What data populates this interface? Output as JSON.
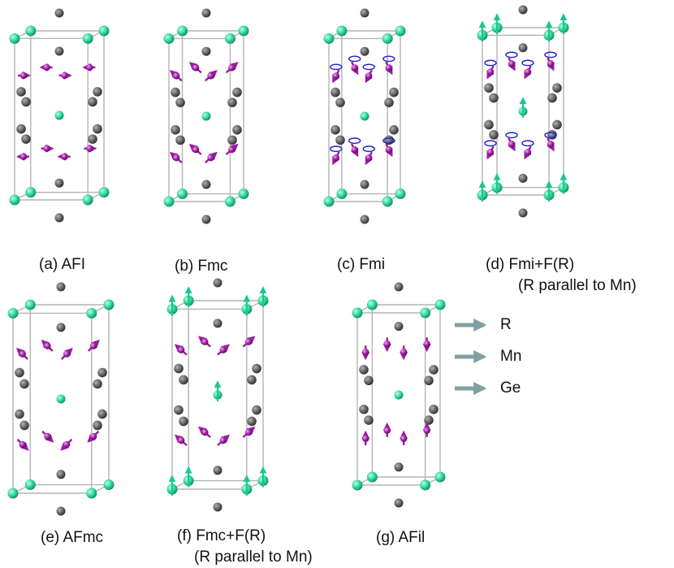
{
  "panels": [
    {
      "id": "a",
      "caption": "(a) AFI",
      "caption2": "",
      "mn_pattern": "inplane_afm",
      "r_moment": false
    },
    {
      "id": "b",
      "caption": "(b) Fmc",
      "caption2": "",
      "mn_pattern": "canted_fm",
      "r_moment": false
    },
    {
      "id": "c",
      "caption": "(c) Fmi",
      "caption2": "",
      "mn_pattern": "cone",
      "r_moment": false
    },
    {
      "id": "d",
      "caption": "(d)   Fmi+F(R)",
      "caption2": "(R parallel to Mn)",
      "mn_pattern": "cone",
      "r_moment": true
    },
    {
      "id": "e",
      "caption": "(e) AFmc",
      "caption2": "",
      "mn_pattern": "canted_afm",
      "r_moment": false
    },
    {
      "id": "f",
      "caption": "(f)  Fmc+F(R)",
      "caption2": "(R parallel to Mn)",
      "mn_pattern": "canted_fm",
      "r_moment": true
    },
    {
      "id": "g",
      "caption": "(g) AFil",
      "caption2": "",
      "mn_pattern": "vertical_afm",
      "r_moment": false
    }
  ],
  "legend": [
    {
      "label": "R",
      "element": "R"
    },
    {
      "label": "Mn",
      "element": "Mn"
    },
    {
      "label": "Ge",
      "element": "Ge"
    }
  ],
  "colors": {
    "R": "#2fd69a",
    "Mn": "#9a1ca0",
    "Ge": "#666666",
    "cell": "#b4b4b4",
    "cone": "#2020d0",
    "legend_arrow": "#7f9ea6"
  }
}
